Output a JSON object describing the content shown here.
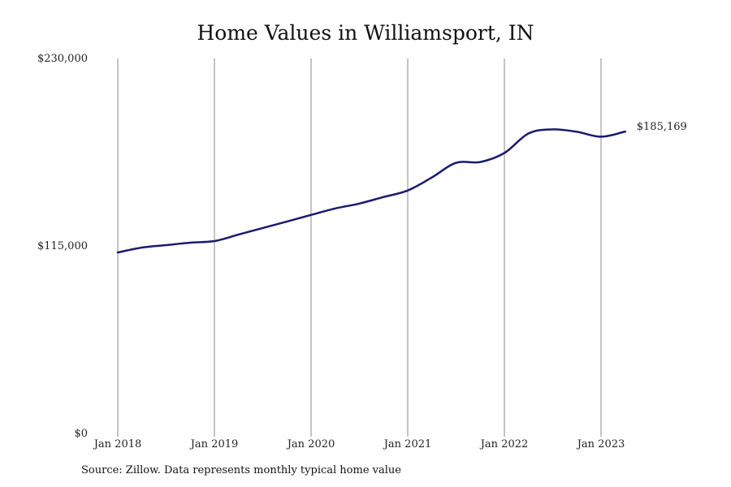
{
  "chart_data": {
    "type": "line",
    "title": "Home Values in Williamsport, IN",
    "xlabel": "",
    "ylabel": "",
    "y_ticks": [
      {
        "value": 0,
        "label": "$0"
      },
      {
        "value": 115000,
        "label": "$115,000"
      },
      {
        "value": 230000,
        "label": "$230,000"
      }
    ],
    "ylim": [
      0,
      230000
    ],
    "x_ticks": [
      {
        "date": "2018-01",
        "label": "Jan 2018"
      },
      {
        "date": "2019-01",
        "label": "Jan 2019"
      },
      {
        "date": "2020-01",
        "label": "Jan 2020"
      },
      {
        "date": "2021-01",
        "label": "Jan 2021"
      },
      {
        "date": "2022-01",
        "label": "Jan 2022"
      },
      {
        "date": "2023-01",
        "label": "Jan 2023"
      }
    ],
    "grid": "vertical",
    "line_color": "#1a1a6e",
    "end_label": "$185,169",
    "series": [
      {
        "points": [
          {
            "date": "2018-01",
            "value": 111000
          },
          {
            "date": "2018-04",
            "value": 114000
          },
          {
            "date": "2018-07",
            "value": 115500
          },
          {
            "date": "2018-10",
            "value": 117000
          },
          {
            "date": "2019-01",
            "value": 118000
          },
          {
            "date": "2019-04",
            "value": 122000
          },
          {
            "date": "2019-07",
            "value": 126000
          },
          {
            "date": "2019-10",
            "value": 130000
          },
          {
            "date": "2020-01",
            "value": 134000
          },
          {
            "date": "2020-04",
            "value": 138000
          },
          {
            "date": "2020-07",
            "value": 141000
          },
          {
            "date": "2020-10",
            "value": 145000
          },
          {
            "date": "2021-01",
            "value": 149000
          },
          {
            "date": "2021-04",
            "value": 157000
          },
          {
            "date": "2021-07",
            "value": 166000
          },
          {
            "date": "2021-10",
            "value": 166500
          },
          {
            "date": "2022-01",
            "value": 172000
          },
          {
            "date": "2022-04",
            "value": 184000
          },
          {
            "date": "2022-07",
            "value": 186500
          },
          {
            "date": "2022-10",
            "value": 185000
          },
          {
            "date": "2023-01",
            "value": 182000
          },
          {
            "date": "2023-04",
            "value": 185169
          }
        ]
      }
    ]
  },
  "source_note": "Source: Zillow. Data represents monthly typical home value"
}
